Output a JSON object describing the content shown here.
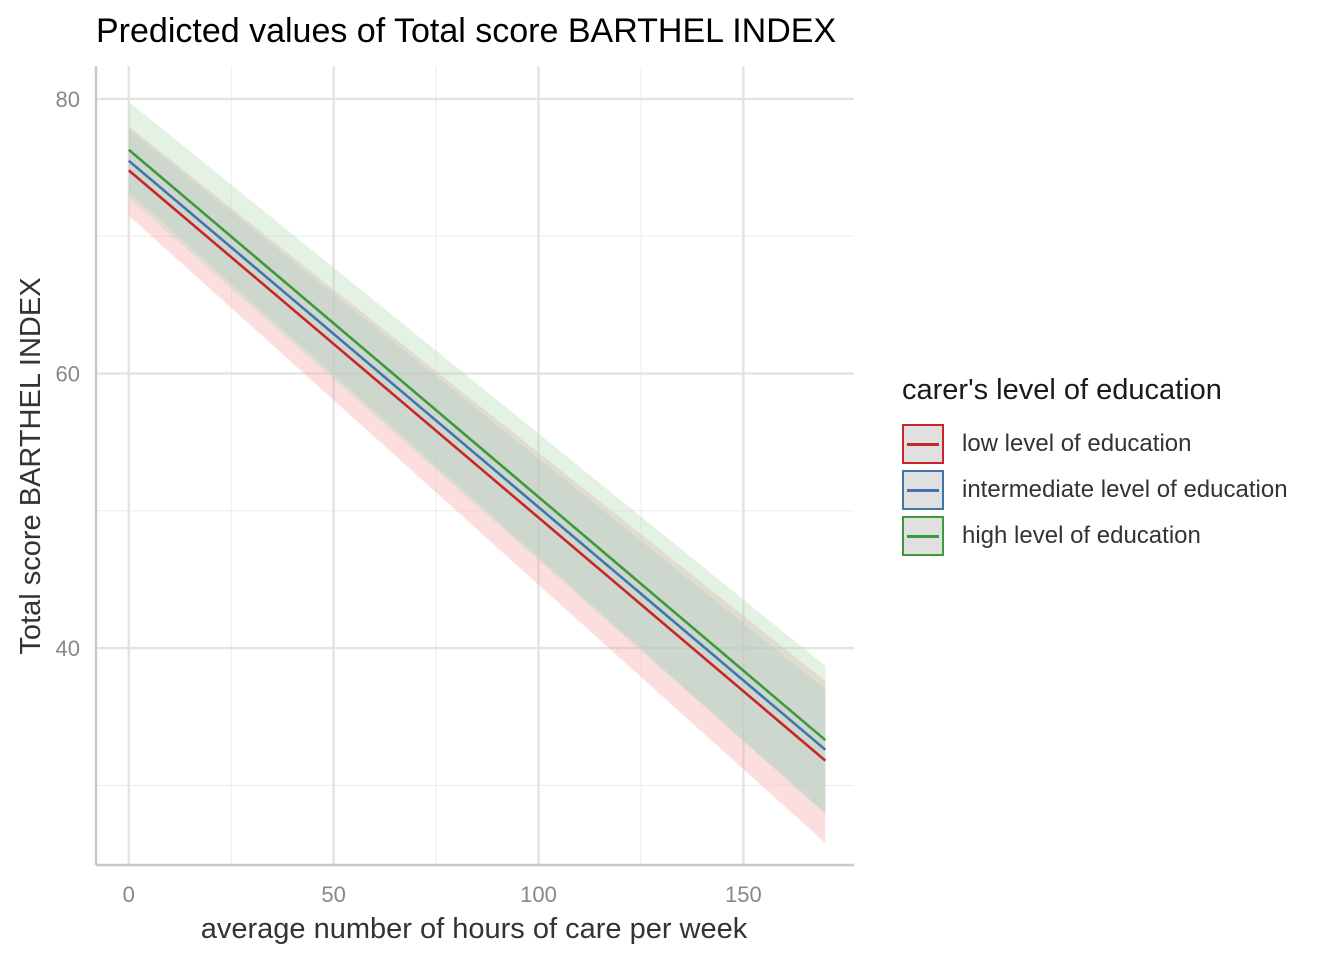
{
  "chart_data": {
    "type": "line",
    "title": "Predicted values of Total score BARTHEL INDEX",
    "xlabel": "average number of hours of care per week",
    "ylabel": "Total score BARTHEL INDEX",
    "xlim": [
      -8,
      177
    ],
    "ylim": [
      24.2,
      82.4
    ],
    "x_ticks": [
      0,
      50,
      100,
      150
    ],
    "x_tick_labels": [
      "0",
      "50",
      "100",
      "150"
    ],
    "y_ticks": [
      40,
      60,
      80
    ],
    "y_tick_labels": [
      "40",
      "60",
      "80"
    ],
    "grid": true,
    "legend": {
      "title": "carer's level of education",
      "position": "right"
    },
    "x": [
      0,
      170
    ],
    "series": [
      {
        "name": "low level of education",
        "color": "#C8262B",
        "band_color": "#F8A8AC",
        "values": [
          74.8,
          31.8
        ],
        "ci_lower": [
          71.5,
          25.8
        ],
        "ci_upper": [
          78.0,
          37.6
        ]
      },
      {
        "name": "intermediate level of education",
        "color": "#3F77AD",
        "band_color": "#A9C6DC",
        "values": [
          75.5,
          32.6
        ],
        "ci_lower": [
          73.2,
          28.0
        ],
        "ci_upper": [
          77.8,
          37.0
        ]
      },
      {
        "name": "high level of education",
        "color": "#3C9A3C",
        "band_color": "#B5DDB2",
        "values": [
          76.3,
          33.3
        ],
        "ci_lower": [
          72.8,
          27.9
        ],
        "ci_upper": [
          79.8,
          38.7
        ]
      }
    ]
  }
}
